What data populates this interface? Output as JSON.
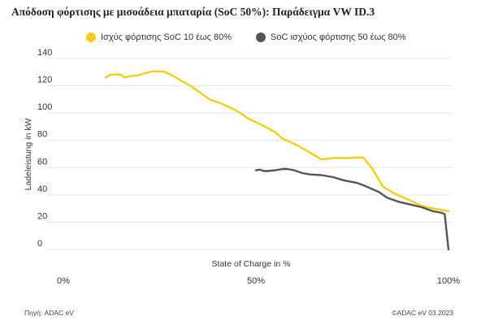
{
  "title": "Απόδοση φόρτισης με μισοάδεια μπαταρία (SoC 50%): Παράδειγμα VW ID.3",
  "source": "Πηγή: ADAC eV",
  "copyright": "©ADAC eV 03.2023",
  "chart_data": {
    "type": "line",
    "xlabel": "State of Charge in %",
    "ylabel": "Ladeleistung in kW",
    "xlim": [
      0,
      100
    ],
    "ylim": [
      0,
      140
    ],
    "x_tick_labels": [
      "0%",
      "50%",
      "100%"
    ],
    "y_ticks": [
      0,
      20,
      40,
      60,
      80,
      100,
      120,
      140
    ],
    "grid": "horizontal",
    "legend_position": "top",
    "series": [
      {
        "name": "Ισχύς φόρτισης SoC 10 έως 80%",
        "color": "#f2cd1a",
        "points": [
          [
            11,
            126
          ],
          [
            12,
            128
          ],
          [
            13,
            128
          ],
          [
            14,
            128.5
          ],
          [
            15,
            128
          ],
          [
            16,
            126
          ],
          [
            17,
            127
          ],
          [
            19,
            127.5
          ],
          [
            21,
            129
          ],
          [
            23,
            130.5
          ],
          [
            26,
            130.5
          ],
          [
            28,
            128
          ],
          [
            31,
            123
          ],
          [
            33,
            120
          ],
          [
            36,
            114
          ],
          [
            38,
            110
          ],
          [
            41,
            107
          ],
          [
            44,
            103
          ],
          [
            46,
            100
          ],
          [
            48,
            96
          ],
          [
            51,
            92
          ],
          [
            53,
            89
          ],
          [
            55,
            86
          ],
          [
            57,
            81
          ],
          [
            58,
            80
          ],
          [
            61,
            76
          ],
          [
            64,
            71
          ],
          [
            67,
            66
          ],
          [
            70,
            67
          ],
          [
            74,
            67
          ],
          [
            77,
            67.5
          ],
          [
            78,
            67
          ],
          [
            80,
            60
          ],
          [
            83,
            46
          ],
          [
            86,
            41
          ],
          [
            90,
            36
          ],
          [
            93,
            32
          ],
          [
            96,
            30
          ],
          [
            100,
            28
          ]
        ]
      },
      {
        "name": "SoC ισχύος φόρτισης 50 έως 80%",
        "color": "#555555",
        "points": [
          [
            50,
            58
          ],
          [
            51,
            58.5
          ],
          [
            52,
            57.5
          ],
          [
            53,
            57.5
          ],
          [
            55,
            58
          ],
          [
            57,
            59
          ],
          [
            58,
            59
          ],
          [
            60,
            58
          ],
          [
            62,
            56
          ],
          [
            64,
            55
          ],
          [
            67,
            54.5
          ],
          [
            70,
            53
          ],
          [
            73,
            50.5
          ],
          [
            76,
            49
          ],
          [
            78,
            47
          ],
          [
            80,
            44.5
          ],
          [
            82,
            42
          ],
          [
            84,
            38
          ],
          [
            87,
            35
          ],
          [
            90,
            33
          ],
          [
            93,
            31
          ],
          [
            96,
            28
          ],
          [
            98,
            27
          ],
          [
            99,
            26
          ],
          [
            100,
            0
          ]
        ]
      }
    ]
  }
}
